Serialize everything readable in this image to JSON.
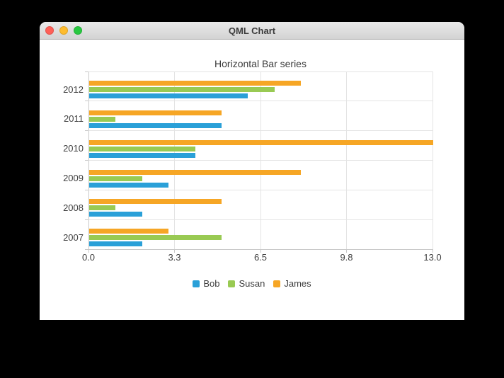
{
  "window": {
    "title": "QML Chart",
    "traffic_lights": {
      "close_color": "#ff5f57",
      "minimize_color": "#febc2e",
      "zoom_color": "#28c840"
    }
  },
  "chart_data": {
    "type": "bar",
    "orientation": "horizontal",
    "title": "Horizontal Bar series",
    "categories": [
      "2007",
      "2008",
      "2009",
      "2010",
      "2011",
      "2012"
    ],
    "series": [
      {
        "name": "Bob",
        "color": "#2aa0d8",
        "values": [
          2,
          2,
          3,
          4,
          5,
          6
        ]
      },
      {
        "name": "Susan",
        "color": "#99ca53",
        "values": [
          5,
          1,
          2,
          4,
          1,
          7
        ]
      },
      {
        "name": "James",
        "color": "#f6a625",
        "values": [
          3,
          5,
          8,
          13,
          5,
          8
        ]
      }
    ],
    "xlim": [
      0,
      13
    ],
    "x_ticks": [
      {
        "value": 0,
        "label": "0.0"
      },
      {
        "value": 3.25,
        "label": "3.3"
      },
      {
        "value": 6.5,
        "label": "6.5"
      },
      {
        "value": 9.75,
        "label": "9.8"
      },
      {
        "value": 13,
        "label": "13.0"
      }
    ],
    "grid": true,
    "legend_position": "bottom"
  }
}
